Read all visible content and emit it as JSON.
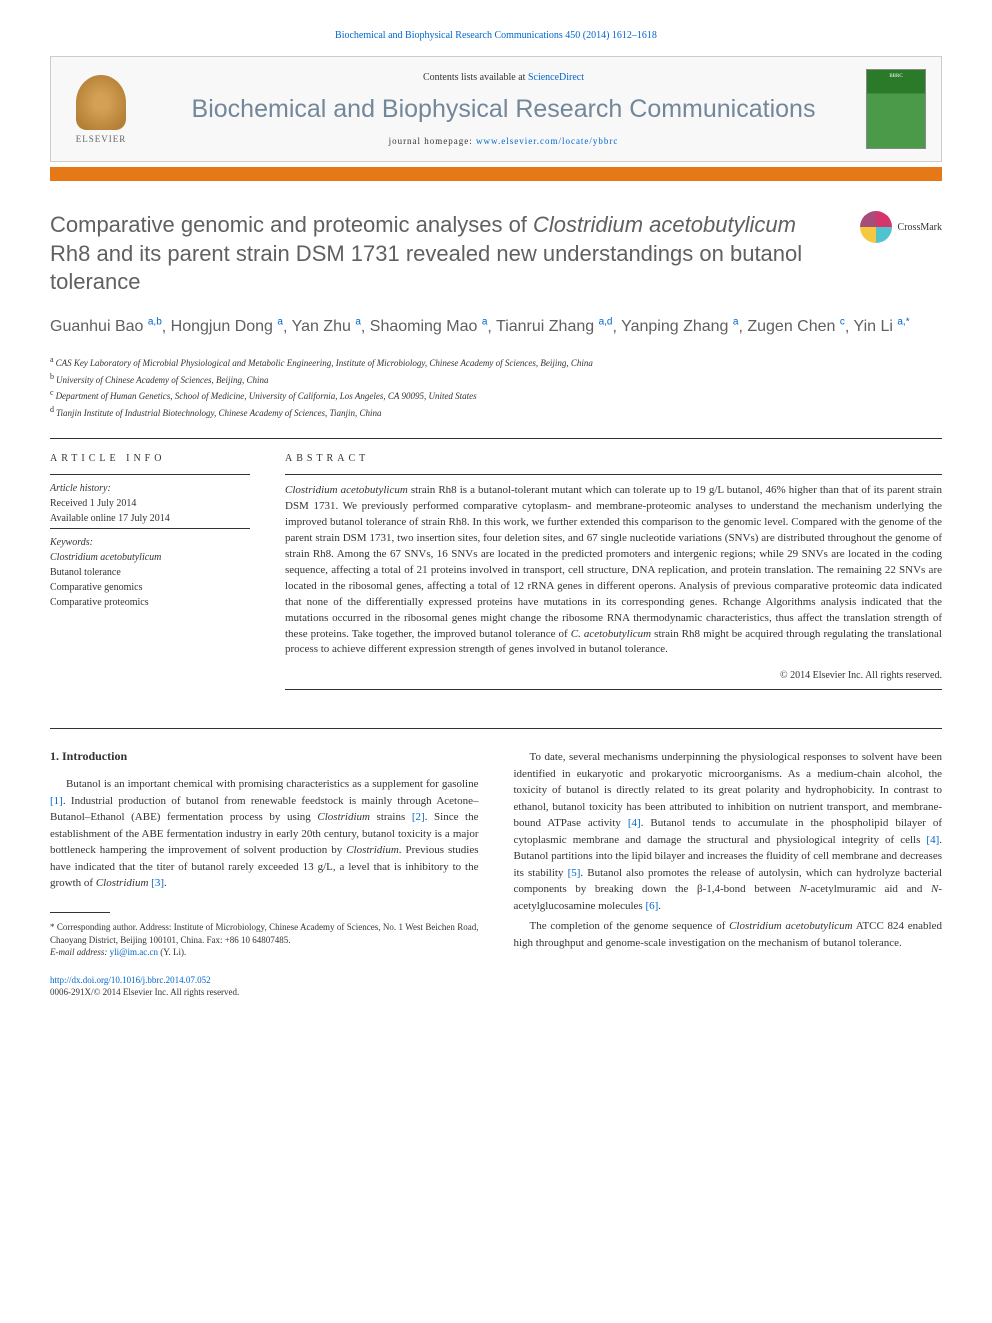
{
  "journal_ref": "Biochemical and Biophysical Research Communications 450 (2014) 1612–1618",
  "header": {
    "contents_prefix": "Contents lists available at ",
    "contents_link": "ScienceDirect",
    "journal_name": "Biochemical and Biophysical Research Communications",
    "homepage_prefix": "journal homepage: ",
    "homepage_link": "www.elsevier.com/locate/ybbrc",
    "elsevier": "ELSEVIER",
    "crossmark": "CrossMark",
    "cover_text": "BBRC"
  },
  "colors": {
    "orange_bar": "#e67817",
    "link": "#0066cc",
    "title": "#606060",
    "journal_gray": "#73879a"
  },
  "title": {
    "line1_pre": "Comparative genomic and proteomic analyses of ",
    "line1_em": "Clostridium acetobutylicum",
    "line1_post": " Rh8 and its parent strain DSM 1731 revealed new understandings on butanol tolerance"
  },
  "authors": [
    {
      "name": "Guanhui Bao",
      "aff": "a,b"
    },
    {
      "name": "Hongjun Dong",
      "aff": "a"
    },
    {
      "name": "Yan Zhu",
      "aff": "a"
    },
    {
      "name": "Shaoming Mao",
      "aff": "a"
    },
    {
      "name": "Tianrui Zhang",
      "aff": "a,d"
    },
    {
      "name": "Yanping Zhang",
      "aff": "a"
    },
    {
      "name": "Zugen Chen",
      "aff": "c"
    },
    {
      "name": "Yin Li",
      "aff": "a,",
      "star": true
    }
  ],
  "affiliations": [
    {
      "sup": "a",
      "text": "CAS Key Laboratory of Microbial Physiological and Metabolic Engineering, Institute of Microbiology, Chinese Academy of Sciences, Beijing, China"
    },
    {
      "sup": "b",
      "text": "University of Chinese Academy of Sciences, Beijing, China"
    },
    {
      "sup": "c",
      "text": "Department of Human Genetics, School of Medicine, University of California, Los Angeles, CA 90095, United States"
    },
    {
      "sup": "d",
      "text": "Tianjin Institute of Industrial Biotechnology, Chinese Academy of Sciences, Tianjin, China"
    }
  ],
  "article_info": {
    "heading": "article info",
    "history_label": "Article history:",
    "received": "Received 1 July 2014",
    "online": "Available online 17 July 2014",
    "keywords_label": "Keywords:",
    "keywords": [
      {
        "text": "Clostridium acetobutylicum",
        "italic": true
      },
      {
        "text": "Butanol tolerance",
        "italic": false
      },
      {
        "text": "Comparative genomics",
        "italic": false
      },
      {
        "text": "Comparative proteomics",
        "italic": false
      }
    ]
  },
  "abstract": {
    "heading": "abstract",
    "text_parts": [
      {
        "t": "Clostridium acetobutylicum",
        "em": true
      },
      {
        "t": " strain Rh8 is a butanol-tolerant mutant which can tolerate up to 19 g/L butanol, 46% higher than that of its parent strain DSM 1731. We previously performed comparative cytoplasm- and membrane-proteomic analyses to understand the mechanism underlying the improved butanol tolerance of strain Rh8. In this work, we further extended this comparison to the genomic level. Compared with the genome of the parent strain DSM 1731, two insertion sites, four deletion sites, and 67 single nucleotide variations (SNVs) are distributed throughout the genome of strain Rh8. Among the 67 SNVs, 16 SNVs are located in the predicted promoters and intergenic regions; while 29 SNVs are located in the coding sequence, affecting a total of 21 proteins involved in transport, cell structure, DNA replication, and protein translation. The remaining 22 SNVs are located in the ribosomal genes, affecting a total of 12 rRNA genes in different operons. Analysis of previous comparative proteomic data indicated that none of the differentially expressed proteins have mutations in its corresponding genes. Rchange Algorithms analysis indicated that the mutations occurred in the ribosomal genes might change the ribosome RNA thermodynamic characteristics, thus affect the translation strength of these proteins. Take together, the improved butanol tolerance of ",
        "em": false
      },
      {
        "t": "C. acetobutylicum",
        "em": true
      },
      {
        "t": " strain Rh8 might be acquired through regulating the translational process to achieve different expression strength of genes involved in butanol tolerance.",
        "em": false
      }
    ],
    "copyright": "© 2014 Elsevier Inc. All rights reserved."
  },
  "body": {
    "section1_heading": "1. Introduction",
    "col1_p1": {
      "parts": [
        {
          "t": "Butanol is an important chemical with promising characteristics as a supplement for gasoline "
        },
        {
          "t": "[1]",
          "ref": true
        },
        {
          "t": ". Industrial production of butanol from renewable feedstock is mainly through Acetone–Butanol–Ethanol (ABE) fermentation process by using "
        },
        {
          "t": "Clostridium",
          "em": true
        },
        {
          "t": " strains "
        },
        {
          "t": "[2]",
          "ref": true
        },
        {
          "t": ". Since the establishment of the ABE fermentation industry in early 20th century, butanol toxicity is a major bottleneck hampering the improvement of solvent production by "
        },
        {
          "t": "Clostridium",
          "em": true
        },
        {
          "t": ". Previous studies have indicated that the titer of butanol rarely exceeded 13 g/L, a level that is inhibitory to the growth of "
        },
        {
          "t": "Clostridium",
          "em": true
        },
        {
          "t": " "
        },
        {
          "t": "[3]",
          "ref": true
        },
        {
          "t": "."
        }
      ]
    },
    "col2_p1": {
      "parts": [
        {
          "t": "To date, several mechanisms underpinning the physiological responses to solvent have been identified in eukaryotic and prokaryotic microorganisms. As a medium-chain alcohol, the toxicity of butanol is directly related to its great polarity and hydrophobicity. In contrast to ethanol, butanol toxicity has been attributed to inhibition on nutrient transport, and membrane-bound ATPase activity "
        },
        {
          "t": "[4]",
          "ref": true
        },
        {
          "t": ". Butanol tends to accumulate in the phospholipid bilayer of cytoplasmic membrane and damage the structural and physiological integrity of cells "
        },
        {
          "t": "[4]",
          "ref": true
        },
        {
          "t": ". Butanol partitions into the lipid bilayer and increases the fluidity of cell membrane and decreases its stability "
        },
        {
          "t": "[5]",
          "ref": true
        },
        {
          "t": ". Butanol also promotes the release of autolysin, which can hydrolyze bacterial components by breaking down the β-1,4-bond between "
        },
        {
          "t": "N",
          "em": true
        },
        {
          "t": "-acetylmuramic aid and "
        },
        {
          "t": "N",
          "em": true
        },
        {
          "t": "-acetylglucosamine molecules "
        },
        {
          "t": "[6]",
          "ref": true
        },
        {
          "t": "."
        }
      ]
    },
    "col2_p2": {
      "parts": [
        {
          "t": "The completion of the genome sequence of "
        },
        {
          "t": "Clostridium acetobutylicum",
          "em": true
        },
        {
          "t": " ATCC 824 enabled high throughput and genome-scale investigation on the mechanism of butanol tolerance."
        }
      ]
    }
  },
  "footnotes": {
    "corresponding": "* Corresponding author. Address: Institute of Microbiology, Chinese Academy of Sciences, No. 1 West Beichen Road, Chaoyang District, Beijing 100101, China. Fax: +86 10 64807485.",
    "email_label": "E-mail address:",
    "email": "yli@im.ac.cn",
    "email_name": "(Y. Li)."
  },
  "footer": {
    "doi": "http://dx.doi.org/10.1016/j.bbrc.2014.07.052",
    "issn": "0006-291X/© 2014 Elsevier Inc. All rights reserved."
  }
}
